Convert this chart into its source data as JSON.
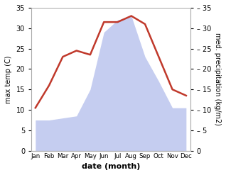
{
  "months": [
    "Jan",
    "Feb",
    "Mar",
    "Apr",
    "May",
    "Jun",
    "Jul",
    "Aug",
    "Sep",
    "Oct",
    "Nov",
    "Dec"
  ],
  "temperature": [
    10.5,
    16.0,
    23.0,
    24.5,
    23.5,
    31.5,
    31.5,
    33.0,
    31.0,
    23.0,
    15.0,
    13.5
  ],
  "precipitation": [
    7.5,
    7.5,
    8.0,
    8.5,
    15.0,
    29.0,
    32.0,
    33.0,
    23.0,
    17.0,
    10.5,
    10.5
  ],
  "temp_color": "#c0392b",
  "precip_fill_color": "#c5cdf0",
  "ylim": [
    0,
    35
  ],
  "xlabel": "date (month)",
  "ylabel_left": "max temp (C)",
  "ylabel_right": "med. precipitation (kg/m2)",
  "bg_color": "#ffffff",
  "line_width": 1.8,
  "yticks": [
    0,
    5,
    10,
    15,
    20,
    25,
    30,
    35
  ],
  "spine_color": "#aaaaaa"
}
